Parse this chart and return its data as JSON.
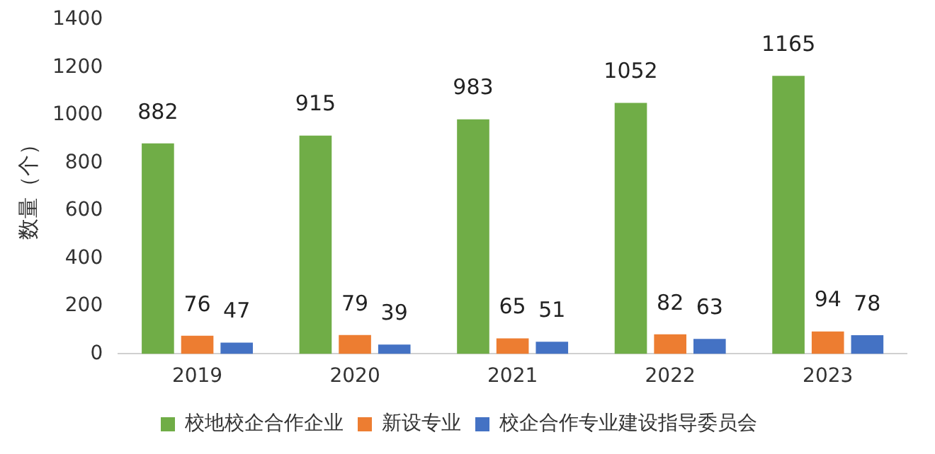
{
  "chart_data": {
    "type": "bar",
    "ylabel": "数量（个）",
    "categories": [
      "2019",
      "2020",
      "2021",
      "2022",
      "2023"
    ],
    "series": [
      {
        "name": "校地校企合作企业",
        "color": "#70ad47",
        "values": [
          882,
          915,
          983,
          1052,
          1165
        ]
      },
      {
        "name": "新设专业",
        "color": "#ed7d31",
        "values": [
          76,
          79,
          65,
          82,
          94
        ]
      },
      {
        "name": "校企合作专业建设指导委员会",
        "color": "#4472c4",
        "values": [
          47,
          39,
          51,
          63,
          78
        ]
      }
    ],
    "ylim": [
      0,
      1400
    ],
    "yticks": [
      0,
      200,
      400,
      600,
      800,
      1000,
      1200,
      1400
    ],
    "grid": false,
    "legend": "bottom",
    "data_labels": true
  }
}
